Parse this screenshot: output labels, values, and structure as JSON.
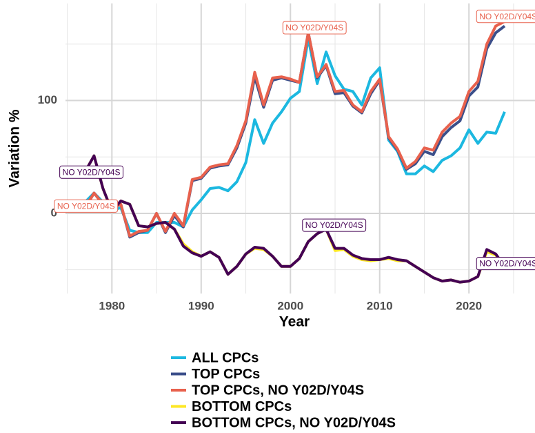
{
  "chart_data": {
    "type": "line",
    "x_label": "Year",
    "y_label": "Variation %",
    "xlim": [
      1974.8,
      2027.4
    ],
    "ylim": [
      -71,
      186
    ],
    "xticks": [
      1980,
      1990,
      2000,
      2010,
      2020
    ],
    "yticks": [
      0,
      100
    ],
    "xminor": [
      1975,
      1985,
      1995,
      2005,
      2015,
      2025
    ],
    "yminor": [
      -50,
      50,
      150
    ],
    "grid": true,
    "legend": "bottom",
    "x": [
      1977,
      1978,
      1979,
      1980,
      1981,
      1982,
      1983,
      1984,
      1985,
      1986,
      1987,
      1988,
      1989,
      1990,
      1991,
      1992,
      1993,
      1994,
      1995,
      1996,
      1997,
      1998,
      1999,
      2000,
      2001,
      2002,
      2003,
      2004,
      2005,
      2006,
      2007,
      2008,
      2009,
      2010,
      2011,
      2012,
      2013,
      2014,
      2015,
      2016,
      2017,
      2018,
      2019,
      2020,
      2021,
      2022,
      2023,
      2024
    ],
    "series": [
      {
        "name": "ALL CPCs",
        "color": "#1cb8e0",
        "values": [
          10,
          18,
          10,
          3,
          5,
          -15,
          -17,
          -17,
          -8,
          -8,
          -8,
          -12,
          3,
          12,
          22,
          23,
          20,
          28,
          45,
          83,
          62,
          80,
          90,
          102,
          108,
          155,
          115,
          143,
          122,
          110,
          108,
          96,
          120,
          129,
          65,
          55,
          35,
          35,
          42,
          37,
          47,
          51,
          58,
          74,
          62,
          72,
          71,
          90
        ]
      },
      {
        "name": "TOP CPCs",
        "color": "#3b4f8a",
        "values": [
          5,
          18,
          8,
          5,
          8,
          -21,
          -17,
          -15,
          0,
          -17,
          -2,
          -12,
          29,
          31,
          40,
          42,
          43,
          58,
          80,
          121,
          94,
          118,
          120,
          118,
          116,
          160,
          120,
          131,
          106,
          107,
          95,
          89,
          106,
          118,
          67,
          56,
          39,
          44,
          55,
          52,
          68,
          76,
          82,
          104,
          112,
          146,
          160,
          166
        ]
      },
      {
        "name": "TOP CPCs, NO Y02D/Y04S",
        "color": "#e8614d",
        "values": [
          5,
          18,
          8,
          5,
          8,
          -20,
          -16,
          -15,
          0,
          -16,
          0,
          -11,
          30,
          32,
          41,
          43,
          44,
          60,
          82,
          125,
          96,
          120,
          121,
          119,
          116,
          160,
          121,
          132,
          108,
          109,
          96,
          90,
          108,
          119,
          68,
          57,
          40,
          46,
          58,
          56,
          72,
          80,
          86,
          108,
          117,
          150,
          166,
          170
        ]
      },
      {
        "name": "BOTTOM CPCs",
        "color": "#fde725",
        "values": [
          37,
          51,
          22,
          2,
          11,
          8,
          -11,
          -12,
          -9,
          -8,
          -14,
          -27,
          -34,
          -38,
          -34,
          -39,
          -54,
          -47,
          -36,
          -31,
          -32,
          -38,
          -47,
          -47,
          -40,
          -25,
          -18,
          -14,
          -33,
          -32,
          -38,
          -41,
          -42,
          -41,
          -40,
          -42,
          -42,
          -47,
          -52,
          -57,
          -60,
          -59,
          -61,
          -60,
          -56,
          -34,
          -37,
          -47
        ]
      },
      {
        "name": "BOTTOM CPCs, NO Y02D/Y04S",
        "color": "#440154",
        "values": [
          37,
          51,
          22,
          2,
          11,
          8,
          -11,
          -12,
          -9,
          -8,
          -14,
          -29,
          -35,
          -38,
          -34,
          -39,
          -54,
          -47,
          -36,
          -30,
          -31,
          -38,
          -47,
          -47,
          -40,
          -25,
          -18,
          -14,
          -31,
          -31,
          -37,
          -40,
          -41,
          -41,
          -39,
          -41,
          -42,
          -47,
          -52,
          -57,
          -60,
          -59,
          -61,
          -60,
          -56,
          -32,
          -36,
          -47
        ]
      }
    ],
    "annotations": [
      {
        "text": "NO Y02D/Y04S",
        "x": 1977.7,
        "y": 36,
        "color": "#440154"
      },
      {
        "text": "NO Y02D/Y04S",
        "x": 1977.1,
        "y": 6,
        "color": "#e8614d"
      },
      {
        "text": "NO Y02D/Y04S",
        "x": 2002.7,
        "y": 164,
        "color": "#e8614d"
      },
      {
        "text": "NO Y02D/Y04S",
        "x": 2024.4,
        "y": 174,
        "color": "#e8614d"
      },
      {
        "text": "NO Y02D/Y04S",
        "x": 2004.9,
        "y": -11,
        "color": "#440154"
      },
      {
        "text": "NO Y02D/Y04S",
        "x": 2024.4,
        "y": -45,
        "color": "#440154"
      }
    ]
  }
}
